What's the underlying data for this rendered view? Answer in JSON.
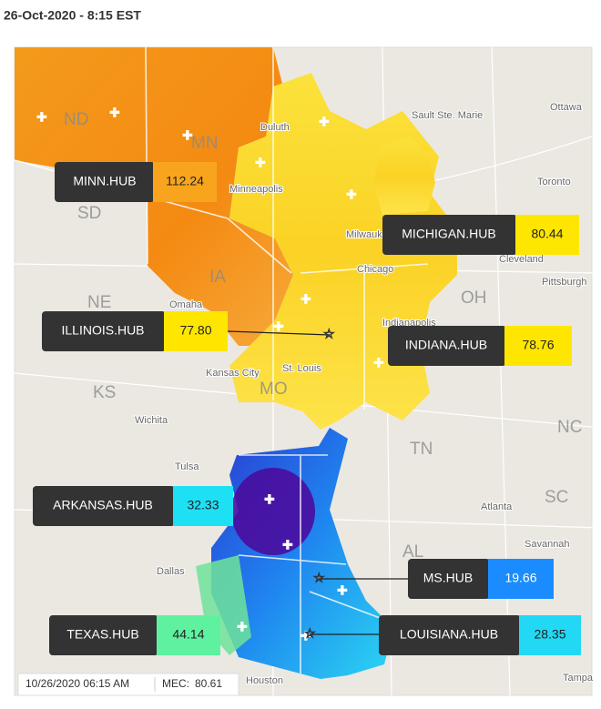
{
  "header": {
    "title": "26-Oct-2020 - 8:15 EST"
  },
  "hubs": [
    {
      "name": "MINN.HUB",
      "value": "112.24"
    },
    {
      "name": "MICHIGAN.HUB",
      "value": "80.44"
    },
    {
      "name": "ILLINOIS.HUB",
      "value": "77.80"
    },
    {
      "name": "INDIANA.HUB",
      "value": "78.76"
    },
    {
      "name": "ARKANSAS.HUB",
      "value": "32.33"
    },
    {
      "name": "MS.HUB",
      "value": "19.66"
    },
    {
      "name": "TEXAS.HUB",
      "value": "44.14"
    },
    {
      "name": "LOUISIANA.HUB",
      "value": "28.35"
    }
  ],
  "footer": {
    "timestamp": "10/26/2020 06:15 AM",
    "mec_label": "MEC:",
    "mec_value": "80.61"
  },
  "map_labels": [
    "ND",
    "MN",
    "SD",
    "IA",
    "NE",
    "KS",
    "MO",
    "OH",
    "TN",
    "NC",
    "SC",
    "AL",
    "Ottawa",
    "Toronto",
    "Sault Ste. Marie",
    "Cleveland",
    "Pittsburgh",
    "Wichita",
    "Tulsa",
    "Atlanta",
    "Savannah",
    "Dallas",
    "Houston",
    "Tampa",
    "Minneapolis",
    "Omaha",
    "Kansas City",
    "St. Louis",
    "Indianapolis",
    "Chicago",
    "Duluth",
    "Milwaukee"
  ]
}
